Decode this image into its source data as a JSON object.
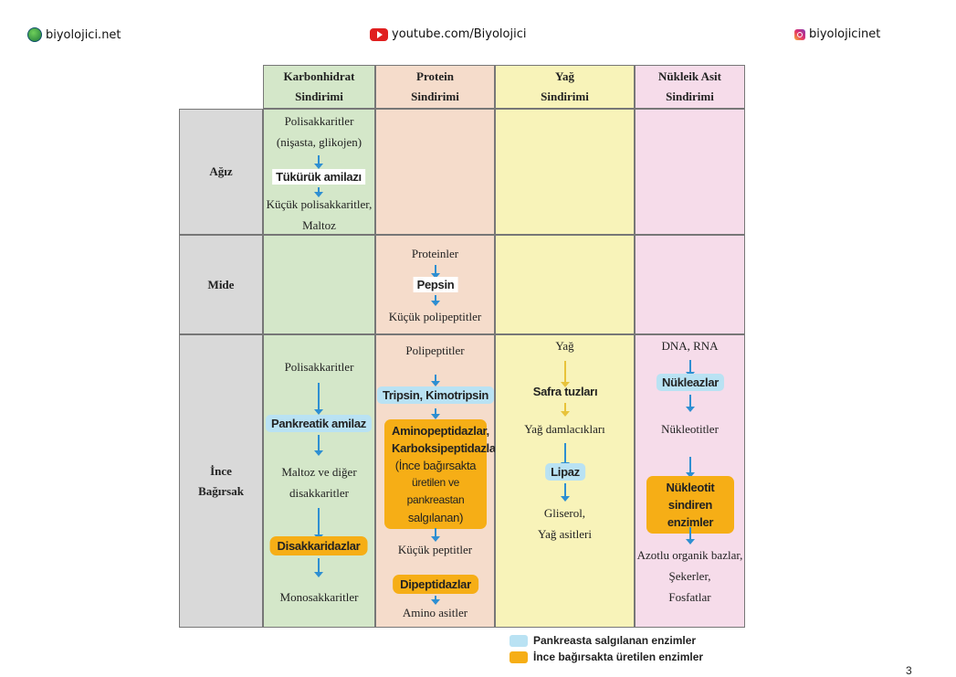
{
  "header": {
    "site": "biyolojici.net",
    "youtube": "youtube.com/Biyolojici",
    "instagram": "biyolojicinet"
  },
  "columns": [
    {
      "line1": "Karbonhidrat",
      "line2": "Sindirimi",
      "color": "#d4e7c9"
    },
    {
      "line1": "Protein",
      "line2": "Sindirimi",
      "color": "#f5dccb"
    },
    {
      "line1": "Yağ",
      "line2": "Sindirimi",
      "color": "#f8f3b9"
    },
    {
      "line1": "Nükleik Asit",
      "line2": "Sindirimi",
      "color": "#f6dcea"
    }
  ],
  "rows": {
    "mouth": "Ağız",
    "stomach": "Mide",
    "intestine_line1": "İnce",
    "intestine_line2": "Bağırsak"
  },
  "mouth_carb": {
    "t1": "Polisakkaritler",
    "t2": "(nişasta, glikojen)",
    "enzyme": "Tükürük amilazı",
    "t3": "Küçük polisakkaritler,",
    "t4": "Maltoz"
  },
  "stomach_protein": {
    "t1": "Proteinler",
    "enzyme": "Pepsin",
    "t2": "Küçük polipeptitler"
  },
  "int_carb": {
    "t1": "Polisakkaritler",
    "enzyme1": "Pankreatik amilaz",
    "t2": "Maltoz ve diğer",
    "t3": "disakkaritler",
    "enzyme2": "Disakkaridazlar",
    "t4": "Monosakkaritler"
  },
  "int_protein": {
    "t1": "Polipeptitler",
    "enzyme1": "Tripsin, Kimotripsin",
    "enzyme2_l1": "Aminopeptidazlar,",
    "enzyme2_l2": "Karboksipeptidazlar",
    "enzyme2_l3": "(İnce bağırsakta",
    "enzyme2_l4": "üretilen ve pankreastan",
    "enzyme2_l5": "salgılanan)",
    "t2": "Küçük peptitler",
    "enzyme3": "Dipeptidazlar",
    "t3": "Amino asitler"
  },
  "int_fat": {
    "t1": "Yağ",
    "agent": "Safra tuzları",
    "t2": "Yağ damlacıkları",
    "enzyme": "Lipaz",
    "t3": "Gliserol,",
    "t4": "Yağ asitleri"
  },
  "int_nucleic": {
    "t1": "DNA, RNA",
    "enzyme1": "Nükleazlar",
    "t2": "Nükleotitler",
    "enzyme2_l1": "Nükleotit sindiren",
    "enzyme2_l2": "enzimler",
    "t3": "Azotlu organik bazlar,",
    "t4": "Şekerler,",
    "t5": "Fosfatlar"
  },
  "legend": {
    "blue_label": "Pankreasta salgılanan enzimler",
    "orange_label": "İnce bağırsakta üretilen enzimler",
    "blue_color": "#b9e2f3",
    "orange_color": "#f6ae16"
  },
  "page_number": "3"
}
